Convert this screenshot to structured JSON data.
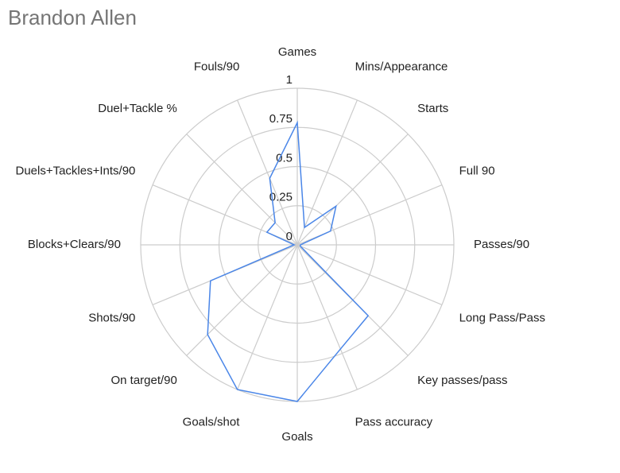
{
  "chart_data": {
    "type": "radar",
    "title": "Brandon Allen",
    "categories": [
      "Games",
      "Mins/Appearance",
      "Starts",
      "Full 90",
      "Passes/90",
      "Long Pass/Pass",
      "Key passes/pass",
      "Pass accuracy",
      "Goals",
      "Goals/shot",
      "On target/90",
      "Shots/90",
      "Blocks+Clears/90",
      "Duels+Tackles+Ints/90",
      "Duel+Tackle %",
      "Fouls/90"
    ],
    "values": [
      0.78,
      0.12,
      0.35,
      0.23,
      0.02,
      0.02,
      0.64,
      0.72,
      1.0,
      1.0,
      0.81,
      0.6,
      0.02,
      0.21,
      0.2,
      0.46
    ],
    "color": "#4a86e8",
    "ylim": [
      0,
      1
    ],
    "yticks": [
      0,
      0.25,
      0.5,
      0.75,
      1
    ],
    "grid": true
  }
}
